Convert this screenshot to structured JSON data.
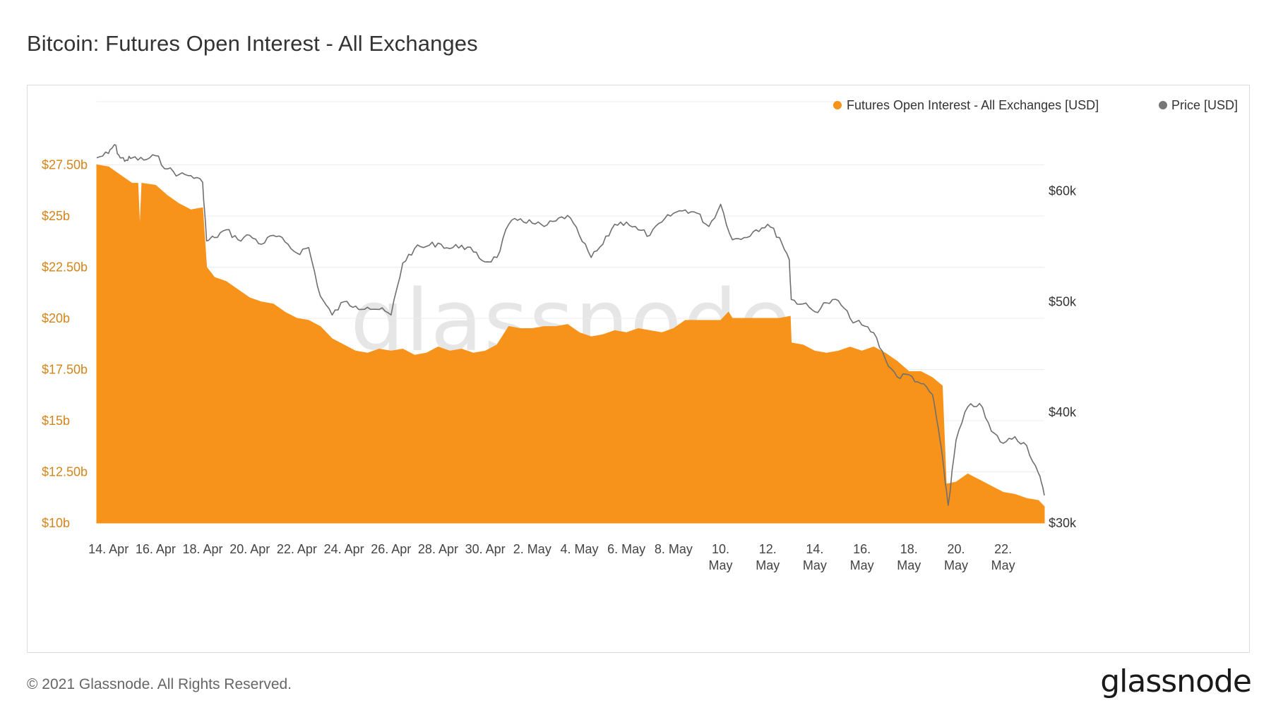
{
  "title": "Bitcoin: Futures Open Interest - All Exchanges",
  "footer": {
    "copyright": "© 2021 Glassnode. All Rights Reserved.",
    "brand": "glassnode"
  },
  "watermark": "glassnode",
  "colors": {
    "open_interest": "#f7931a",
    "price": "#7f7f7f",
    "left_axis_text": "#d4841a"
  },
  "chart_data": {
    "type": "area",
    "title": "Bitcoin: Futures Open Interest - All Exchanges",
    "legend": {
      "position": "top-right",
      "entries": [
        "Futures Open Interest - All Exchanges [USD]",
        "Price [USD]"
      ]
    },
    "grid": true,
    "x_range": [
      "2021-04-13T12:00",
      "2021-05-23T18:00"
    ],
    "x_ticks": [
      {
        "date": "2021-04-14",
        "label": "14. Apr"
      },
      {
        "date": "2021-04-16",
        "label": "16. Apr"
      },
      {
        "date": "2021-04-18",
        "label": "18. Apr"
      },
      {
        "date": "2021-04-20",
        "label": "20. Apr"
      },
      {
        "date": "2021-04-22",
        "label": "22. Apr"
      },
      {
        "date": "2021-04-24",
        "label": "24. Apr"
      },
      {
        "date": "2021-04-26",
        "label": "26. Apr"
      },
      {
        "date": "2021-04-28",
        "label": "28. Apr"
      },
      {
        "date": "2021-04-30",
        "label": "30. Apr"
      },
      {
        "date": "2021-05-02",
        "label": "2. May"
      },
      {
        "date": "2021-05-04",
        "label": "4. May"
      },
      {
        "date": "2021-05-06",
        "label": "6. May"
      },
      {
        "date": "2021-05-08",
        "label": "8. May"
      },
      {
        "date": "2021-05-10",
        "label": "10. May"
      },
      {
        "date": "2021-05-12",
        "label": "12. May"
      },
      {
        "date": "2021-05-14",
        "label": "14. May"
      },
      {
        "date": "2021-05-16",
        "label": "16. May"
      },
      {
        "date": "2021-05-18",
        "label": "18. May"
      },
      {
        "date": "2021-05-20",
        "label": "20. May"
      },
      {
        "date": "2021-05-22",
        "label": "22. May"
      }
    ],
    "y_left": {
      "ylim": [
        10,
        30
      ],
      "ticks": [
        10,
        12.5,
        15,
        17.5,
        20,
        22.5,
        25,
        27.5
      ],
      "tick_labels": [
        "$10b",
        "$12.50b",
        "$15b",
        "$17.50b",
        "$20b",
        "$22.50b",
        "$25b",
        "$27.50b"
      ]
    },
    "y_right": {
      "ylim": [
        30000,
        67000
      ],
      "ticks": [
        30000,
        40000,
        50000,
        60000
      ],
      "tick_labels": [
        "$30k",
        "$40k",
        "$50k",
        "$60k"
      ]
    },
    "series": [
      {
        "name": "Futures Open Interest - All Exchanges [USD]",
        "axis": "left",
        "unit": "billion USD",
        "points": [
          [
            "2021-04-13T12:00",
            27.5
          ],
          [
            "2021-04-14T00:00",
            27.4
          ],
          [
            "2021-04-14T12:00",
            27.0
          ],
          [
            "2021-04-15T00:00",
            26.6
          ],
          [
            "2021-04-15T06:00",
            26.6
          ],
          [
            "2021-04-15T08:00",
            24.3
          ],
          [
            "2021-04-15T10:00",
            26.6
          ],
          [
            "2021-04-16T00:00",
            26.5
          ],
          [
            "2021-04-16T12:00",
            26.0
          ],
          [
            "2021-04-17T00:00",
            25.6
          ],
          [
            "2021-04-17T12:00",
            25.3
          ],
          [
            "2021-04-18T00:00",
            25.4
          ],
          [
            "2021-04-18T04:00",
            22.5
          ],
          [
            "2021-04-18T12:00",
            22.0
          ],
          [
            "2021-04-19T00:00",
            21.8
          ],
          [
            "2021-04-19T12:00",
            21.4
          ],
          [
            "2021-04-20T00:00",
            21.0
          ],
          [
            "2021-04-20T12:00",
            20.8
          ],
          [
            "2021-04-21T00:00",
            20.7
          ],
          [
            "2021-04-21T12:00",
            20.3
          ],
          [
            "2021-04-22T00:00",
            20.0
          ],
          [
            "2021-04-22T12:00",
            19.9
          ],
          [
            "2021-04-23T00:00",
            19.6
          ],
          [
            "2021-04-23T12:00",
            19.0
          ],
          [
            "2021-04-24T00:00",
            18.7
          ],
          [
            "2021-04-24T12:00",
            18.4
          ],
          [
            "2021-04-25T00:00",
            18.3
          ],
          [
            "2021-04-25T12:00",
            18.5
          ],
          [
            "2021-04-26T00:00",
            18.4
          ],
          [
            "2021-04-26T12:00",
            18.5
          ],
          [
            "2021-04-27T00:00",
            18.2
          ],
          [
            "2021-04-27T12:00",
            18.3
          ],
          [
            "2021-04-28T00:00",
            18.6
          ],
          [
            "2021-04-28T12:00",
            18.4
          ],
          [
            "2021-04-29T00:00",
            18.5
          ],
          [
            "2021-04-29T12:00",
            18.3
          ],
          [
            "2021-04-30T00:00",
            18.4
          ],
          [
            "2021-04-30T12:00",
            18.7
          ],
          [
            "2021-05-01T00:00",
            19.6
          ],
          [
            "2021-05-01T12:00",
            19.5
          ],
          [
            "2021-05-02T00:00",
            19.5
          ],
          [
            "2021-05-02T12:00",
            19.6
          ],
          [
            "2021-05-03T00:00",
            19.6
          ],
          [
            "2021-05-03T12:00",
            19.7
          ],
          [
            "2021-05-04T00:00",
            19.3
          ],
          [
            "2021-05-04T12:00",
            19.1
          ],
          [
            "2021-05-05T00:00",
            19.2
          ],
          [
            "2021-05-05T12:00",
            19.4
          ],
          [
            "2021-05-06T00:00",
            19.3
          ],
          [
            "2021-05-06T12:00",
            19.5
          ],
          [
            "2021-05-07T00:00",
            19.4
          ],
          [
            "2021-05-07T12:00",
            19.3
          ],
          [
            "2021-05-08T00:00",
            19.5
          ],
          [
            "2021-05-08T12:00",
            19.9
          ],
          [
            "2021-05-09T00:00",
            19.9
          ],
          [
            "2021-05-09T12:00",
            19.9
          ],
          [
            "2021-05-10T00:00",
            19.9
          ],
          [
            "2021-05-10T08:00",
            20.3
          ],
          [
            "2021-05-10T12:00",
            20.0
          ],
          [
            "2021-05-11T00:00",
            20.0
          ],
          [
            "2021-05-11T12:00",
            20.0
          ],
          [
            "2021-05-12T00:00",
            20.0
          ],
          [
            "2021-05-12T12:00",
            20.0
          ],
          [
            "2021-05-12T23:00",
            20.1
          ],
          [
            "2021-05-13T00:00",
            18.8
          ],
          [
            "2021-05-13T12:00",
            18.7
          ],
          [
            "2021-05-14T00:00",
            18.4
          ],
          [
            "2021-05-14T12:00",
            18.3
          ],
          [
            "2021-05-15T00:00",
            18.4
          ],
          [
            "2021-05-15T12:00",
            18.6
          ],
          [
            "2021-05-16T00:00",
            18.4
          ],
          [
            "2021-05-16T12:00",
            18.6
          ],
          [
            "2021-05-17T00:00",
            18.3
          ],
          [
            "2021-05-17T12:00",
            17.9
          ],
          [
            "2021-05-18T00:00",
            17.4
          ],
          [
            "2021-05-18T12:00",
            17.4
          ],
          [
            "2021-05-19T00:00",
            17.1
          ],
          [
            "2021-05-19T10:00",
            16.7
          ],
          [
            "2021-05-19T14:00",
            11.9
          ],
          [
            "2021-05-20T00:00",
            12.0
          ],
          [
            "2021-05-20T12:00",
            12.4
          ],
          [
            "2021-05-21T00:00",
            12.1
          ],
          [
            "2021-05-21T12:00",
            11.8
          ],
          [
            "2021-05-22T00:00",
            11.5
          ],
          [
            "2021-05-22T12:00",
            11.4
          ],
          [
            "2021-05-23T00:00",
            11.2
          ],
          [
            "2021-05-23T12:00",
            11.1
          ],
          [
            "2021-05-23T18:00",
            10.8
          ]
        ]
      },
      {
        "name": "Price [USD]",
        "axis": "right",
        "unit": "USD",
        "points": [
          [
            "2021-04-13T12:00",
            63000
          ],
          [
            "2021-04-14T00:00",
            63400
          ],
          [
            "2021-04-14T06:00",
            64200
          ],
          [
            "2021-04-14T12:00",
            63000
          ],
          [
            "2021-04-14T18:00",
            62800
          ],
          [
            "2021-04-15T00:00",
            63000
          ],
          [
            "2021-04-15T12:00",
            62800
          ],
          [
            "2021-04-16T00:00",
            63200
          ],
          [
            "2021-04-16T12:00",
            62000
          ],
          [
            "2021-04-17T00:00",
            61500
          ],
          [
            "2021-04-17T12:00",
            61400
          ],
          [
            "2021-04-18T00:00",
            60800
          ],
          [
            "2021-04-18T04:00",
            55500
          ],
          [
            "2021-04-18T12:00",
            55800
          ],
          [
            "2021-04-19T00:00",
            56500
          ],
          [
            "2021-04-19T12:00",
            55600
          ],
          [
            "2021-04-20T00:00",
            56000
          ],
          [
            "2021-04-20T12:00",
            55200
          ],
          [
            "2021-04-21T00:00",
            56000
          ],
          [
            "2021-04-21T12:00",
            55400
          ],
          [
            "2021-04-22T00:00",
            54400
          ],
          [
            "2021-04-22T12:00",
            54900
          ],
          [
            "2021-04-23T00:00",
            50500
          ],
          [
            "2021-04-23T12:00",
            48800
          ],
          [
            "2021-04-24T00:00",
            50000
          ],
          [
            "2021-04-24T12:00",
            49600
          ],
          [
            "2021-04-25T00:00",
            49500
          ],
          [
            "2021-04-25T12:00",
            49300
          ],
          [
            "2021-04-26T00:00",
            48800
          ],
          [
            "2021-04-26T12:00",
            53500
          ],
          [
            "2021-04-27T00:00",
            54800
          ],
          [
            "2021-04-27T12:00",
            55000
          ],
          [
            "2021-04-28T00:00",
            55300
          ],
          [
            "2021-04-28T12:00",
            54800
          ],
          [
            "2021-04-29T00:00",
            55100
          ],
          [
            "2021-04-29T12:00",
            54500
          ],
          [
            "2021-04-30T00:00",
            53600
          ],
          [
            "2021-04-30T12:00",
            54000
          ],
          [
            "2021-05-01T00:00",
            57000
          ],
          [
            "2021-05-01T12:00",
            57500
          ],
          [
            "2021-05-02T00:00",
            57100
          ],
          [
            "2021-05-02T12:00",
            56800
          ],
          [
            "2021-05-03T00:00",
            57300
          ],
          [
            "2021-05-03T12:00",
            57800
          ],
          [
            "2021-05-04T00:00",
            56000
          ],
          [
            "2021-05-04T12:00",
            54000
          ],
          [
            "2021-05-05T00:00",
            55200
          ],
          [
            "2021-05-05T12:00",
            57000
          ],
          [
            "2021-05-06T00:00",
            57200
          ],
          [
            "2021-05-06T12:00",
            56500
          ],
          [
            "2021-05-07T00:00",
            56000
          ],
          [
            "2021-05-07T12:00",
            57200
          ],
          [
            "2021-05-08T00:00",
            58000
          ],
          [
            "2021-05-08T12:00",
            58300
          ],
          [
            "2021-05-09T00:00",
            58000
          ],
          [
            "2021-05-09T12:00",
            56800
          ],
          [
            "2021-05-10T00:00",
            58800
          ],
          [
            "2021-05-10T12:00",
            55600
          ],
          [
            "2021-05-11T00:00",
            55800
          ],
          [
            "2021-05-11T12:00",
            56500
          ],
          [
            "2021-05-12T00:00",
            57000
          ],
          [
            "2021-05-12T12:00",
            55800
          ],
          [
            "2021-05-12T22:00",
            53800
          ],
          [
            "2021-05-13T00:00",
            50200
          ],
          [
            "2021-05-13T12:00",
            49800
          ],
          [
            "2021-05-14T00:00",
            49100
          ],
          [
            "2021-05-14T12:00",
            49900
          ],
          [
            "2021-05-15T00:00",
            50100
          ],
          [
            "2021-05-15T12:00",
            48500
          ],
          [
            "2021-05-16T00:00",
            47900
          ],
          [
            "2021-05-16T12:00",
            47200
          ],
          [
            "2021-05-17T00:00",
            44800
          ],
          [
            "2021-05-17T12:00",
            43200
          ],
          [
            "2021-05-18T00:00",
            43400
          ],
          [
            "2021-05-18T12:00",
            42600
          ],
          [
            "2021-05-19T00:00",
            41600
          ],
          [
            "2021-05-19T06:00",
            38500
          ],
          [
            "2021-05-19T12:00",
            34500
          ],
          [
            "2021-05-19T16:00",
            31600
          ],
          [
            "2021-05-20T00:00",
            37500
          ],
          [
            "2021-05-20T12:00",
            40500
          ],
          [
            "2021-05-21T00:00",
            40800
          ],
          [
            "2021-05-21T12:00",
            38300
          ],
          [
            "2021-05-22T00:00",
            37200
          ],
          [
            "2021-05-22T12:00",
            37800
          ],
          [
            "2021-05-23T00:00",
            37000
          ],
          [
            "2021-05-23T12:00",
            34500
          ],
          [
            "2021-05-23T18:00",
            32500
          ]
        ]
      }
    ]
  }
}
